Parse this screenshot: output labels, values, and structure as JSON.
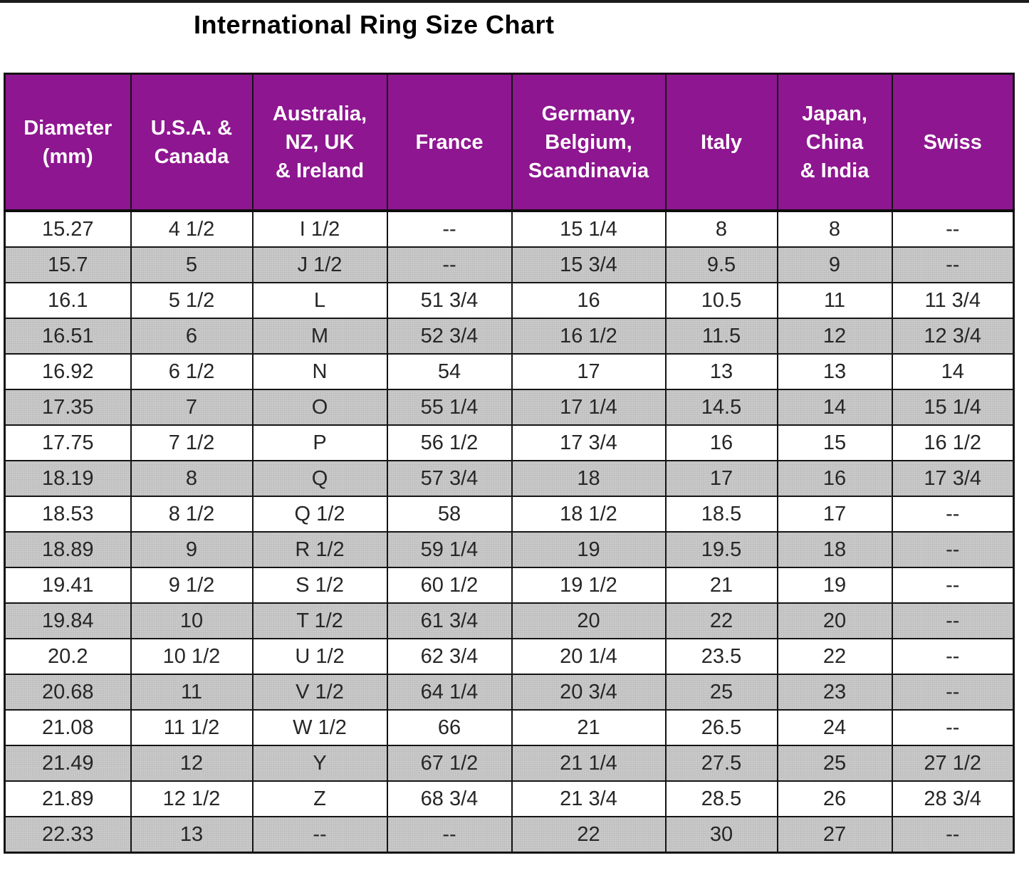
{
  "page": {
    "title": "International Ring Size Chart"
  },
  "colors": {
    "header_bg": "#8E1690",
    "header_text": "#FFFFFF",
    "stripe_row_bg": "#CACACA",
    "plain_row_bg": "#FFFFFF",
    "border": "#141414",
    "title_text": "#000000"
  },
  "chart_data": {
    "type": "table",
    "title": "International Ring Size Chart",
    "columns": [
      {
        "key": "diameter_mm",
        "label": "Diameter (mm)",
        "display": "Diameter\n(mm)"
      },
      {
        "key": "usa_canada",
        "label": "U.S.A. & Canada",
        "display": "U.S.A. &\nCanada"
      },
      {
        "key": "aus_nz_uk_ireland",
        "label": "Australia, NZ, UK & Ireland",
        "display": "Australia,\nNZ, UK\n& Ireland"
      },
      {
        "key": "france",
        "label": "France",
        "display": "France"
      },
      {
        "key": "germany_belgium_scandinavia",
        "label": "Germany, Belgium, Scandinavia",
        "display": "Germany,\nBelgium,\nScandinavia"
      },
      {
        "key": "italy",
        "label": "Italy",
        "display": "Italy"
      },
      {
        "key": "japan_china_india",
        "label": "Japan, China & India",
        "display": "Japan,\nChina\n& India"
      },
      {
        "key": "swiss",
        "label": "Swiss",
        "display": "Swiss"
      }
    ],
    "rows": [
      [
        "15.27",
        "4 1/2",
        "I 1/2",
        "--",
        "15 1/4",
        "8",
        "8",
        "--"
      ],
      [
        "15.7",
        "5",
        "J 1/2",
        "--",
        "15 3/4",
        "9.5",
        "9",
        "--"
      ],
      [
        "16.1",
        "5 1/2",
        "L",
        "51 3/4",
        "16",
        "10.5",
        "11",
        "11 3/4"
      ],
      [
        "16.51",
        "6",
        "M",
        "52 3/4",
        "16 1/2",
        "11.5",
        "12",
        "12 3/4"
      ],
      [
        "16.92",
        "6 1/2",
        "N",
        "54",
        "17",
        "13",
        "13",
        "14"
      ],
      [
        "17.35",
        "7",
        "O",
        "55 1/4",
        "17 1/4",
        "14.5",
        "14",
        "15 1/4"
      ],
      [
        "17.75",
        "7 1/2",
        "P",
        "56 1/2",
        "17 3/4",
        "16",
        "15",
        "16 1/2"
      ],
      [
        "18.19",
        "8",
        "Q",
        "57 3/4",
        "18",
        "17",
        "16",
        "17 3/4"
      ],
      [
        "18.53",
        "8 1/2",
        "Q 1/2",
        "58",
        "18 1/2",
        "18.5",
        "17",
        "--"
      ],
      [
        "18.89",
        "9",
        "R 1/2",
        "59 1/4",
        "19",
        "19.5",
        "18",
        "--"
      ],
      [
        "19.41",
        "9 1/2",
        "S 1/2",
        "60 1/2",
        "19 1/2",
        "21",
        "19",
        "--"
      ],
      [
        "19.84",
        "10",
        "T 1/2",
        "61 3/4",
        "20",
        "22",
        "20",
        "--"
      ],
      [
        "20.2",
        "10 1/2",
        "U 1/2",
        "62 3/4",
        "20 1/4",
        "23.5",
        "22",
        "--"
      ],
      [
        "20.68",
        "11",
        "V 1/2",
        "64 1/4",
        "20 3/4",
        "25",
        "23",
        "--"
      ],
      [
        "21.08",
        "11 1/2",
        "W 1/2",
        "66",
        "21",
        "26.5",
        "24",
        "--"
      ],
      [
        "21.49",
        "12",
        "Y",
        "67 1/2",
        "21 1/4",
        "27.5",
        "25",
        "27 1/2"
      ],
      [
        "21.89",
        "12 1/2",
        "Z",
        "68 3/4",
        "21 3/4",
        "28.5",
        "26",
        "28 3/4"
      ],
      [
        "22.33",
        "13",
        "--",
        "--",
        "22",
        "30",
        "27",
        "--"
      ]
    ]
  }
}
